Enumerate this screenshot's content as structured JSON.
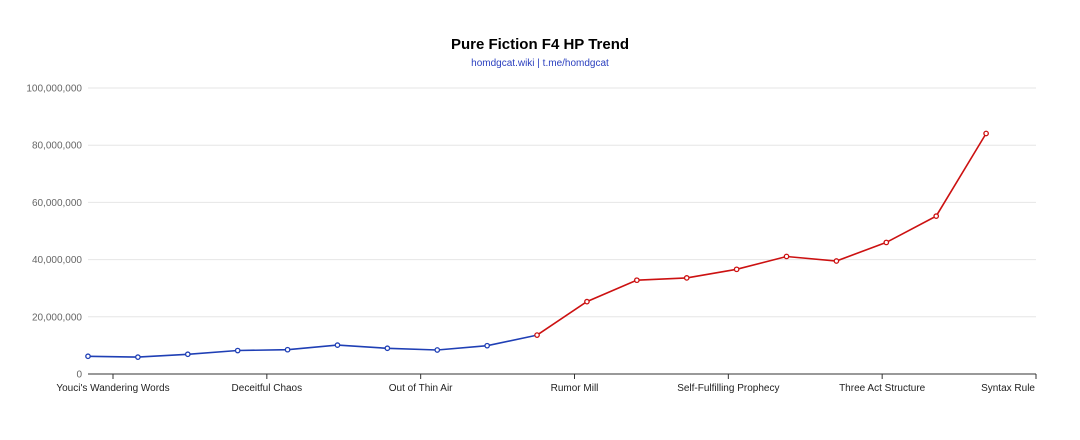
{
  "chart_data": {
    "type": "line",
    "title": "Pure Fiction F4 HP Trend",
    "subtitle": "homdgcat.wiki | t.me/homdgcat",
    "xlabel": "",
    "ylabel": "",
    "ylim": [
      0,
      100000000
    ],
    "yticks": [
      0,
      20000000,
      40000000,
      60000000,
      80000000,
      100000000
    ],
    "ytick_labels": [
      "0",
      "20,000,000",
      "40,000,000",
      "60,000,000",
      "80,000,000",
      "100,000,000"
    ],
    "x_labels": [
      "Youci's Wandering Words",
      "Deceitful Chaos",
      "Out of Thin Air",
      "Rumor Mill",
      "Self-Fulfilling Prophecy",
      "Three Act Structure",
      "Syntax Rule"
    ],
    "grid": true,
    "series": [
      {
        "color": "#1f3fb5",
        "points": [
          {
            "x": 0,
            "y": 6200000
          },
          {
            "x": 1,
            "y": 5900000
          },
          {
            "x": 2,
            "y": 6900000
          },
          {
            "x": 3,
            "y": 8200000
          },
          {
            "x": 4,
            "y": 8500000
          },
          {
            "x": 5,
            "y": 10100000
          },
          {
            "x": 6,
            "y": 9000000
          },
          {
            "x": 7,
            "y": 8400000
          },
          {
            "x": 8,
            "y": 9900000
          },
          {
            "x": 9,
            "y": 13600000
          }
        ]
      },
      {
        "color": "#cc1111",
        "points": [
          {
            "x": 9,
            "y": 13600000
          },
          {
            "x": 10,
            "y": 25300000
          },
          {
            "x": 11,
            "y": 32800000
          },
          {
            "x": 12,
            "y": 33600000
          },
          {
            "x": 13,
            "y": 36600000
          },
          {
            "x": 14,
            "y": 41100000
          },
          {
            "x": 15,
            "y": 39500000
          },
          {
            "x": 16,
            "y": 46000000
          },
          {
            "x": 17,
            "y": 55200000
          },
          {
            "x": 18,
            "y": 84100000
          }
        ]
      }
    ]
  }
}
